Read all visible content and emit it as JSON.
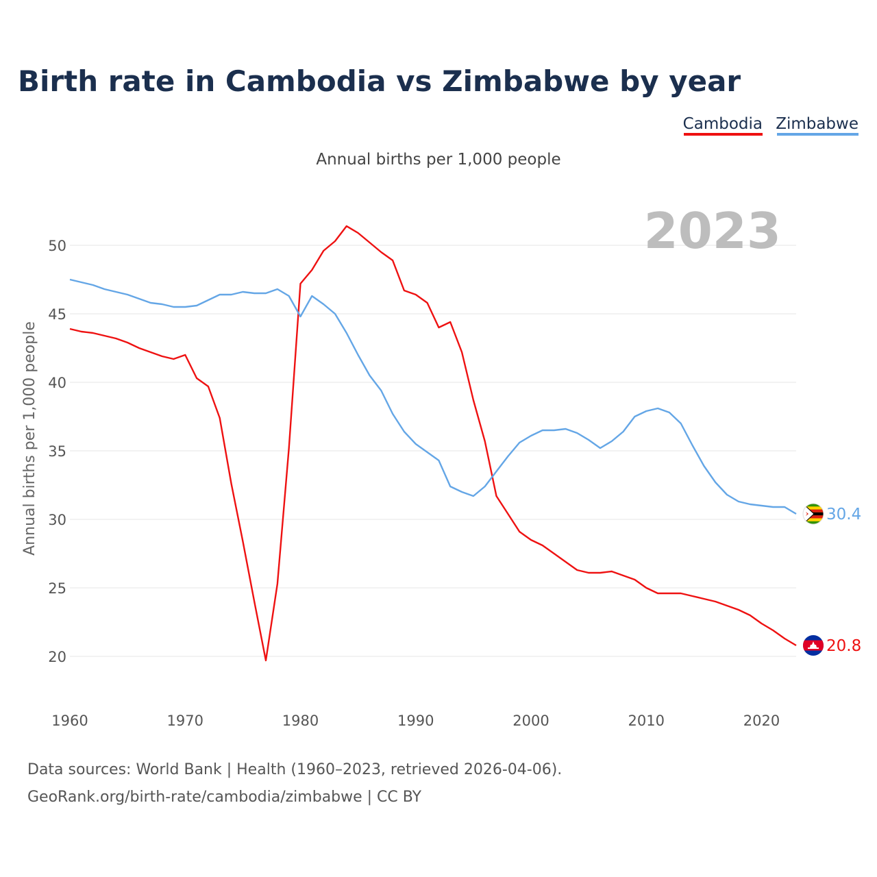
{
  "colors": {
    "cambodia": "#ee1111",
    "zimbabwe": "#64a6e6",
    "title": "#1b2f4e"
  },
  "chart_data": {
    "type": "line",
    "title": "Birth rate in Cambodia vs Zimbabwe by year",
    "subtitle": "Annual births per 1,000 people",
    "xlabel": "",
    "ylabel": "Annual births per 1,000 people",
    "year_label": "2023",
    "xlim": [
      1960,
      2023
    ],
    "ylim": [
      17,
      53
    ],
    "yticks": [
      20,
      25,
      30,
      35,
      40,
      45,
      50
    ],
    "xticks": [
      1960,
      1970,
      1980,
      1990,
      2000,
      2010,
      2020
    ],
    "grid": true,
    "legend_position": "top-right",
    "x": [
      1960,
      1961,
      1962,
      1963,
      1964,
      1965,
      1966,
      1967,
      1968,
      1969,
      1970,
      1971,
      1972,
      1973,
      1974,
      1975,
      1976,
      1977,
      1978,
      1979,
      1980,
      1981,
      1982,
      1983,
      1984,
      1985,
      1986,
      1987,
      1988,
      1989,
      1990,
      1991,
      1992,
      1993,
      1994,
      1995,
      1996,
      1997,
      1998,
      1999,
      2000,
      2001,
      2002,
      2003,
      2004,
      2005,
      2006,
      2007,
      2008,
      2009,
      2010,
      2011,
      2012,
      2013,
      2014,
      2015,
      2016,
      2017,
      2018,
      2019,
      2020,
      2021,
      2022,
      2023
    ],
    "series": [
      {
        "name": "Cambodia",
        "color_key": "cambodia",
        "end_label": "20.8",
        "flag": "cambodia-flag",
        "values": [
          43.9,
          43.7,
          43.6,
          43.4,
          43.2,
          42.9,
          42.5,
          42.2,
          41.9,
          41.7,
          42.0,
          40.3,
          39.7,
          37.4,
          32.6,
          28.4,
          24.0,
          19.7,
          25.3,
          35.2,
          47.2,
          48.2,
          49.6,
          50.3,
          51.4,
          50.9,
          50.2,
          49.5,
          48.9,
          46.7,
          46.4,
          45.8,
          44.0,
          44.4,
          42.2,
          38.7,
          35.7,
          31.7,
          30.4,
          29.1,
          28.5,
          28.1,
          27.5,
          26.9,
          26.3,
          26.1,
          26.1,
          26.2,
          25.9,
          25.6,
          25.0,
          24.6,
          24.6,
          24.6,
          24.4,
          24.2,
          24.0,
          23.7,
          23.4,
          23.0,
          22.4,
          21.9,
          21.3,
          20.8
        ]
      },
      {
        "name": "Zimbabwe",
        "color_key": "zimbabwe",
        "end_label": "30.4",
        "flag": "zimbabwe-flag",
        "values": [
          47.5,
          47.3,
          47.1,
          46.8,
          46.6,
          46.4,
          46.1,
          45.8,
          45.7,
          45.5,
          45.5,
          45.6,
          46.0,
          46.4,
          46.4,
          46.6,
          46.5,
          46.5,
          46.8,
          46.3,
          44.8,
          46.3,
          45.7,
          45.0,
          43.6,
          42.0,
          40.5,
          39.4,
          37.7,
          36.4,
          35.5,
          34.9,
          34.3,
          32.4,
          32.0,
          31.7,
          32.4,
          33.5,
          34.6,
          35.6,
          36.1,
          36.5,
          36.5,
          36.6,
          36.3,
          35.8,
          35.2,
          35.7,
          36.4,
          37.5,
          37.9,
          38.1,
          37.8,
          37.0,
          35.4,
          33.9,
          32.7,
          31.8,
          31.3,
          31.1,
          31.0,
          30.9,
          30.9,
          30.4
        ]
      }
    ]
  },
  "footer": {
    "source_line": "Data sources: World Bank | Health (1960–2023, retrieved 2026-04-06).",
    "credit_line": "GeoRank.org/birth-rate/cambodia/zimbabwe | CC BY"
  }
}
